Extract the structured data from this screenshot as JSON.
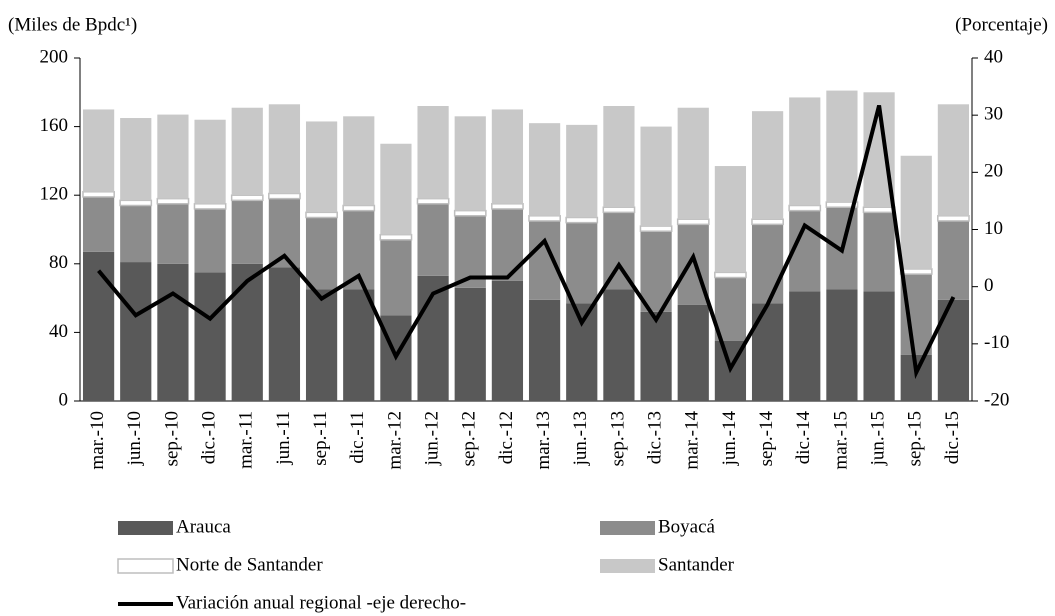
{
  "chart_data": {
    "type": "bar",
    "stacked": true,
    "y_label": "(Miles de Bpdc¹)",
    "y2_label": "(Porcentaje)",
    "categories": [
      "mar.-10",
      "jun.-10",
      "sep.-10",
      "dic.-10",
      "mar.-11",
      "jun.-11",
      "sep.-11",
      "dic.-11",
      "mar.-12",
      "jun.-12",
      "sep.-12",
      "dic.-12",
      "mar.-13",
      "jun.-13",
      "sep.-13",
      "dic.-13",
      "mar.-14",
      "jun.-14",
      "sep.-14",
      "dic.-14",
      "mar.-15",
      "jun.-15",
      "sep.-15",
      "dic.-15"
    ],
    "series": [
      {
        "name": "Arauca",
        "type": "bar",
        "color": "#595959",
        "values": [
          87,
          81,
          80,
          75,
          80,
          78,
          65,
          65,
          50,
          73,
          66,
          70,
          59,
          57,
          65,
          52,
          56,
          35,
          57,
          64,
          65,
          64,
          27,
          59
        ]
      },
      {
        "name": "Boyacá",
        "type": "bar",
        "color": "#8c8c8c",
        "values": [
          32,
          33,
          35,
          37,
          37,
          40,
          42,
          46,
          44,
          42,
          42,
          42,
          46,
          47,
          45,
          47,
          47,
          37,
          46,
          47,
          48,
          46,
          47,
          46
        ]
      },
      {
        "name": "Norte de Santander",
        "type": "bar",
        "color": "#ffffff",
        "values": [
          3,
          3,
          3,
          3,
          3,
          3,
          3,
          3,
          3,
          3,
          3,
          3,
          3,
          3,
          3,
          3,
          3,
          3,
          3,
          3,
          3,
          3,
          3,
          3
        ]
      },
      {
        "name": "Santander",
        "type": "bar",
        "color": "#c8c8c8",
        "values": [
          48,
          48,
          49,
          49,
          51,
          52,
          53,
          52,
          53,
          54,
          55,
          55,
          54,
          54,
          59,
          58,
          65,
          62,
          63,
          63,
          65,
          67,
          66,
          65
        ]
      },
      {
        "name": "Variación anual regional -eje derecho-",
        "type": "line",
        "axis": "y2",
        "color": "#000000",
        "values": [
          2.8,
          -5,
          -1.2,
          -5.6,
          1,
          5.4,
          -2.1,
          1.9,
          -12.2,
          -1.2,
          1.6,
          1.6,
          8,
          -6.3,
          3.8,
          -5.8,
          5.2,
          -14.3,
          -3.1,
          10.7,
          6.3,
          31.7,
          -15,
          -1.8
        ]
      }
    ],
    "ylim": [
      0,
      200
    ],
    "yticks": [
      0,
      40,
      80,
      120,
      160,
      200
    ],
    "y2lim": [
      -20,
      40
    ],
    "y2ticks": [
      -20,
      -10,
      0,
      10,
      20,
      30,
      40
    ],
    "grid": false
  }
}
